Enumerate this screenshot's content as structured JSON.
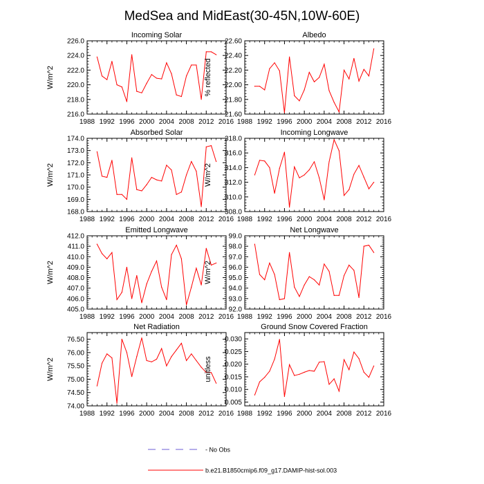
{
  "title": "MedSea and MidEast(30-45N,10W-60E)",
  "colors": {
    "model_line": "#ff0000",
    "obs_line": "#6b5bd6",
    "axis": "#000000"
  },
  "legend": {
    "entries": [
      {
        "label": "No Obs",
        "style": "dashed"
      },
      {
        "label": "b.e21.B1850cmip6.f09_g17.DAMIP-hist-sol.003",
        "style": "solid"
      }
    ]
  },
  "chart_data": [
    {
      "type": "line",
      "title": "Incoming Solar",
      "ylabel": "W/m^2",
      "xlim": [
        1988,
        2016
      ],
      "xticks": [
        1988,
        1992,
        1996,
        2000,
        2004,
        2008,
        2012,
        2016
      ],
      "ylim": [
        216,
        226
      ],
      "yticks": [
        "216.0",
        "218.0",
        "220.0",
        "222.0",
        "224.0",
        "226.0"
      ],
      "x": [
        1990,
        1991,
        1992,
        1993,
        1994,
        1995,
        1996,
        1997,
        1998,
        1999,
        2000,
        2001,
        2002,
        2003,
        2004,
        2005,
        2006,
        2007,
        2008,
        2009,
        2010,
        2011,
        2012,
        2013,
        2014
      ],
      "series": [
        {
          "values": [
            223.8,
            221.2,
            220.7,
            223.2,
            220.0,
            219.7,
            217.7,
            224.1,
            219.1,
            218.9,
            220.2,
            221.4,
            220.9,
            220.8,
            223.0,
            221.5,
            218.6,
            218.4,
            221.2,
            222.7,
            222.7,
            218.0,
            224.5,
            224.5,
            224.1
          ]
        }
      ]
    },
    {
      "type": "line",
      "title": "Albedo",
      "ylabel": "% reflected",
      "xlim": [
        1988,
        2016
      ],
      "xticks": [
        1988,
        1992,
        1996,
        2000,
        2004,
        2008,
        2012,
        2016
      ],
      "ylim": [
        21.6,
        22.6
      ],
      "yticks": [
        "21.60",
        "21.80",
        "22.00",
        "22.20",
        "22.40",
        "22.60"
      ],
      "x": [
        1990,
        1991,
        1992,
        1993,
        1994,
        1995,
        1996,
        1997,
        1998,
        1999,
        2000,
        2001,
        2002,
        2003,
        2004,
        2005,
        2006,
        2007,
        2008,
        2009,
        2010,
        2011,
        2012,
        2013,
        2014
      ],
      "series": [
        {
          "values": [
            21.98,
            21.98,
            21.93,
            22.22,
            22.3,
            22.19,
            21.62,
            22.38,
            21.85,
            21.78,
            21.93,
            22.17,
            22.04,
            22.1,
            22.28,
            21.92,
            21.76,
            21.63,
            22.2,
            22.08,
            22.36,
            22.05,
            22.21,
            22.12,
            22.49
          ]
        }
      ]
    },
    {
      "type": "line",
      "title": "Absorbed Solar",
      "ylabel": "W/m^2",
      "xlim": [
        1988,
        2016
      ],
      "xticks": [
        1988,
        1992,
        1996,
        2000,
        2004,
        2008,
        2012,
        2016
      ],
      "ylim": [
        168,
        174
      ],
      "yticks": [
        "168.0",
        "169.0",
        "170.0",
        "171.0",
        "172.0",
        "173.0",
        "174.0"
      ],
      "x": [
        1990,
        1991,
        1992,
        1993,
        1994,
        1995,
        1996,
        1997,
        1998,
        1999,
        2000,
        2001,
        2002,
        2003,
        2004,
        2005,
        2006,
        2007,
        2008,
        2009,
        2010,
        2011,
        2012,
        2013,
        2014
      ],
      "series": [
        {
          "values": [
            172.9,
            170.9,
            170.8,
            172.2,
            169.4,
            169.4,
            169.0,
            172.4,
            169.8,
            169.7,
            170.2,
            170.8,
            170.6,
            170.5,
            171.8,
            171.4,
            169.4,
            169.6,
            171.0,
            172.1,
            171.3,
            168.4,
            173.3,
            173.4,
            172.1
          ]
        }
      ]
    },
    {
      "type": "line",
      "title": "Incoming Longwave",
      "ylabel": "W/m^2",
      "xlim": [
        1988,
        2016
      ],
      "xticks": [
        1988,
        1992,
        1996,
        2000,
        2004,
        2008,
        2012,
        2016
      ],
      "ylim": [
        308,
        318
      ],
      "yticks": [
        "308.0",
        "310.0",
        "312.0",
        "314.0",
        "316.0",
        "318.0"
      ],
      "x": [
        1990,
        1991,
        1992,
        1993,
        1994,
        1995,
        1996,
        1997,
        1998,
        1999,
        2000,
        2001,
        2002,
        2003,
        2004,
        2005,
        2006,
        2007,
        2008,
        2009,
        2010,
        2011,
        2012,
        2013,
        2014
      ],
      "series": [
        {
          "values": [
            313.0,
            315.0,
            314.9,
            314.0,
            310.5,
            313.9,
            316.1,
            308.6,
            314.1,
            312.6,
            313.0,
            313.7,
            314.8,
            312.6,
            309.6,
            314.8,
            317.8,
            316.3,
            310.2,
            311.0,
            313.1,
            314.3,
            312.7,
            311.1,
            312.0
          ]
        }
      ]
    },
    {
      "type": "line",
      "title": "Emitted Longwave",
      "ylabel": "W/m^2",
      "xlim": [
        1988,
        2016
      ],
      "xticks": [
        1988,
        1992,
        1996,
        2000,
        2004,
        2008,
        2012,
        2016
      ],
      "ylim": [
        405,
        412
      ],
      "yticks": [
        "405.0",
        "406.0",
        "407.0",
        "408.0",
        "409.0",
        "410.0",
        "411.0",
        "412.0"
      ],
      "x": [
        1990,
        1991,
        1992,
        1993,
        1994,
        1995,
        1996,
        1997,
        1998,
        1999,
        2000,
        2001,
        2002,
        2003,
        2004,
        2005,
        2006,
        2007,
        2008,
        2009,
        2010,
        2011,
        2012,
        2013,
        2014
      ],
      "series": [
        {
          "values": [
            411.2,
            410.3,
            409.8,
            410.4,
            405.9,
            406.6,
            409.0,
            406.0,
            408.2,
            405.6,
            407.4,
            408.6,
            409.6,
            407.1,
            405.9,
            410.2,
            411.1,
            409.8,
            405.4,
            407.1,
            408.9,
            407.3,
            410.8,
            409.2,
            409.4
          ]
        }
      ]
    },
    {
      "type": "line",
      "title": "Net Longwave",
      "ylabel": "W/m^2",
      "xlim": [
        1988,
        2016
      ],
      "xticks": [
        1988,
        1992,
        1996,
        2000,
        2004,
        2008,
        2012,
        2016
      ],
      "ylim": [
        92,
        99
      ],
      "yticks": [
        "92.0",
        "93.0",
        "94.0",
        "95.0",
        "96.0",
        "97.0",
        "98.0",
        "99.0"
      ],
      "x": [
        1990,
        1991,
        1992,
        1993,
        1994,
        1995,
        1996,
        1997,
        1998,
        1999,
        2000,
        2001,
        2002,
        2003,
        2004,
        2005,
        2006,
        2007,
        2008,
        2009,
        2010,
        2011,
        2012,
        2013,
        2014
      ],
      "series": [
        {
          "values": [
            98.2,
            95.3,
            94.8,
            96.4,
            95.3,
            92.9,
            93.0,
            97.4,
            94.1,
            93.2,
            94.3,
            95.1,
            94.8,
            94.3,
            96.3,
            95.6,
            93.3,
            93.3,
            95.2,
            96.2,
            95.7,
            93.1,
            98.0,
            98.1,
            97.4
          ]
        }
      ]
    },
    {
      "type": "line",
      "title": "Net Radiation",
      "ylabel": "W/m^2",
      "xlim": [
        1988,
        2016
      ],
      "xticks": [
        1988,
        1992,
        1996,
        2000,
        2004,
        2008,
        2012,
        2016
      ],
      "ylim": [
        74,
        76.75
      ],
      "yticks": [
        "74.00",
        "74.50",
        "75.00",
        "75.50",
        "76.00",
        "76.50"
      ],
      "x": [
        1990,
        1991,
        1992,
        1993,
        1994,
        1995,
        1996,
        1997,
        1998,
        1999,
        2000,
        2001,
        2002,
        2003,
        2004,
        2005,
        2006,
        2007,
        2008,
        2009,
        2010,
        2011,
        2012,
        2013,
        2014
      ],
      "series": [
        {
          "values": [
            74.75,
            75.6,
            75.95,
            75.8,
            74.1,
            76.5,
            76.0,
            75.1,
            75.85,
            76.55,
            75.7,
            75.65,
            75.75,
            76.15,
            75.5,
            75.85,
            76.1,
            76.35,
            75.7,
            75.95,
            75.7,
            75.45,
            75.25,
            75.25,
            74.85
          ]
        }
      ]
    },
    {
      "type": "line",
      "title": "Ground Snow Covered Fraction",
      "ylabel": "unitless",
      "xlim": [
        1988,
        2016
      ],
      "xticks": [
        1988,
        1992,
        1996,
        2000,
        2004,
        2008,
        2012,
        2016
      ],
      "ylim": [
        0.0035,
        0.0325
      ],
      "yticks": [
        "0.005",
        "0.010",
        "0.015",
        "0.020",
        "0.025",
        "0.030"
      ],
      "x": [
        1990,
        1991,
        1992,
        1993,
        1994,
        1995,
        1996,
        1997,
        1998,
        1999,
        2000,
        2001,
        2002,
        2003,
        2004,
        2005,
        2006,
        2007,
        2008,
        2009,
        2010,
        2011,
        2012,
        2013,
        2014
      ],
      "series": [
        {
          "values": [
            0.0078,
            0.013,
            0.0148,
            0.0172,
            0.022,
            0.0298,
            0.0072,
            0.0198,
            0.0155,
            0.016,
            0.0168,
            0.0175,
            0.0172,
            0.0208,
            0.021,
            0.012,
            0.0142,
            0.0093,
            0.0218,
            0.0178,
            0.0248,
            0.0222,
            0.0168,
            0.0148,
            0.0193
          ]
        }
      ]
    }
  ]
}
